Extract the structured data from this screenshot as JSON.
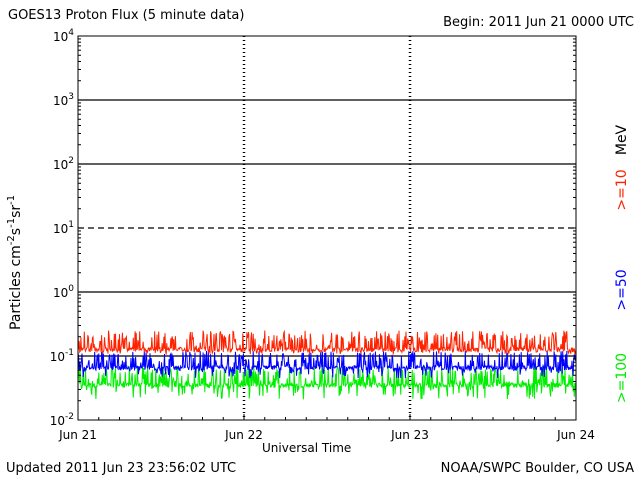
{
  "header": {
    "title": "GOES13 Proton Flux (5 minute data)",
    "begin": "Begin: 2011 Jun 21 0000 UTC"
  },
  "footer": {
    "updated": "Updated 2011 Jun 23 23:56:02 UTC",
    "credit": "NOAA/SWPC Boulder, CO USA"
  },
  "chart_data": {
    "type": "line",
    "title": "GOES13 Proton Flux (5 minute data)",
    "xlabel": "Universal Time",
    "ylabel": "Particles cm⁻²s⁻¹sr⁻¹",
    "yscale": "log",
    "ylim": [
      0.01,
      10000
    ],
    "xlim": [
      "2011-06-21 00:00",
      "2011-06-24 00:00"
    ],
    "x_ticks": [
      "Jun 21",
      "Jun 22",
      "Jun 23",
      "Jun 24"
    ],
    "y_ticks": [
      {
        "base": "10",
        "exp": "-2"
      },
      {
        "base": "10",
        "exp": "-1"
      },
      {
        "base": "10",
        "exp": "0"
      },
      {
        "base": "10",
        "exp": "1"
      },
      {
        "base": "10",
        "exp": "2"
      },
      {
        "base": "10",
        "exp": "3"
      },
      {
        "base": "10",
        "exp": "4"
      }
    ],
    "threshold_lines": [
      {
        "value": 0.1,
        "style": "solid"
      },
      {
        "value": 1,
        "style": "solid"
      },
      {
        "value": 10,
        "style": "dashed"
      },
      {
        "value": 100,
        "style": "solid"
      },
      {
        "value": 1000,
        "style": "solid"
      }
    ],
    "units_label": "MeV",
    "series": [
      {
        "name": ">=10",
        "color": "#ff2200",
        "baseline": 0.125,
        "noise_low": 0.105,
        "noise_high": 0.25
      },
      {
        "name": ">=50",
        "color": "#0000ff",
        "baseline": 0.065,
        "noise_low": 0.045,
        "noise_high": 0.12
      },
      {
        "name": ">=100",
        "color": "#00ee00",
        "baseline": 0.035,
        "noise_low": 0.021,
        "noise_high": 0.07
      }
    ]
  }
}
